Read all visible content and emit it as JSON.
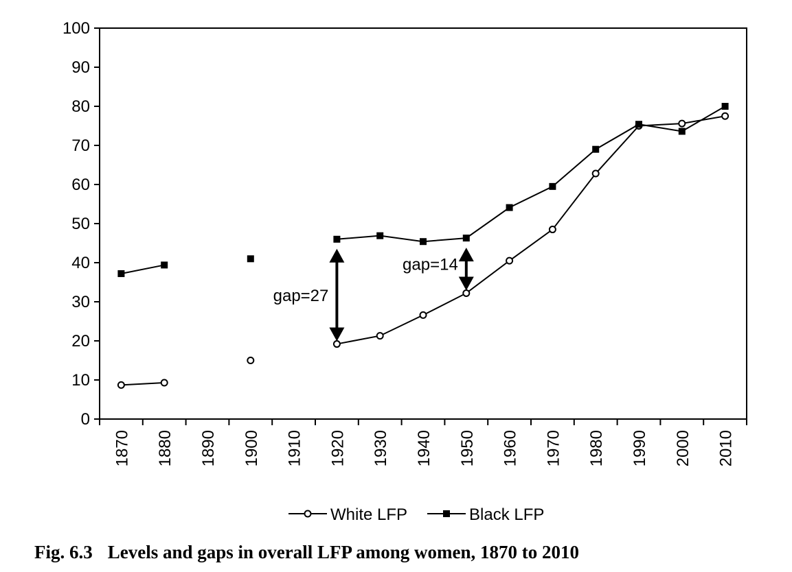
{
  "chart_data": {
    "type": "line",
    "title": "",
    "xlabel": "",
    "ylabel": "",
    "x": [
      1870,
      1880,
      1890,
      1900,
      1910,
      1920,
      1930,
      1940,
      1950,
      1960,
      1970,
      1980,
      1990,
      2000,
      2010
    ],
    "ylim": [
      0,
      100
    ],
    "yticks": [
      0,
      10,
      20,
      30,
      40,
      50,
      60,
      70,
      80,
      90,
      100
    ],
    "grid": false,
    "legend": "bottom",
    "series": [
      {
        "name": "White LFP",
        "marker": "open-circle",
        "color": "#000000",
        "values": [
          8.7,
          9.3,
          null,
          15.0,
          null,
          19.2,
          21.3,
          26.6,
          32.2,
          40.5,
          48.5,
          62.8,
          75.0,
          75.6,
          77.5
        ]
      },
      {
        "name": "Black LFP",
        "marker": "filled-square",
        "color": "#000000",
        "values": [
          37.2,
          39.4,
          null,
          41.0,
          null,
          46.0,
          46.9,
          45.4,
          46.3,
          54.1,
          59.5,
          69.0,
          75.4,
          73.6,
          80.0
        ]
      }
    ],
    "annotations": [
      {
        "text": "gap=27",
        "x": 1920,
        "y_from": 19.2,
        "y_to": 46.0
      },
      {
        "text": "gap=14",
        "x": 1950,
        "y_from": 32.2,
        "y_to": 46.3
      }
    ]
  },
  "caption": {
    "figure_number": "Fig. 6.3",
    "text": "Levels and gaps in overall LFP among women, 1870 to 2010"
  }
}
